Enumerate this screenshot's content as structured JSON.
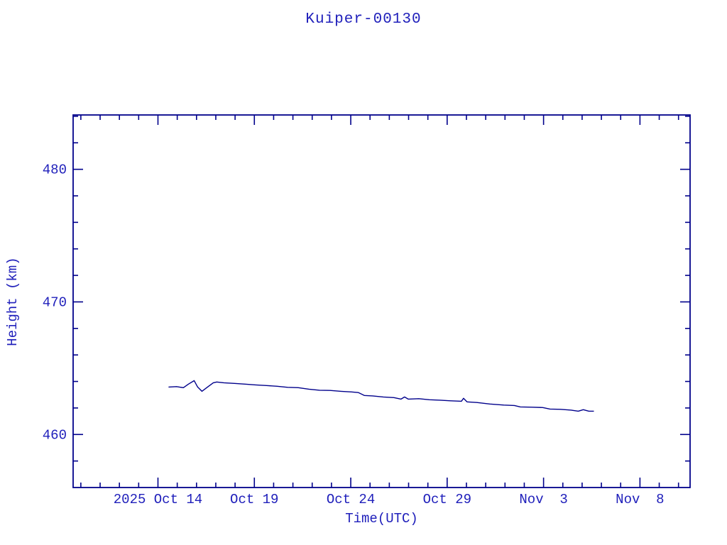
{
  "page": {
    "background_color": "#ffffff",
    "text_color": "#2020bb",
    "axis_color": "#00008b"
  },
  "chart_data": {
    "type": "line",
    "title": "Kuiper-00130",
    "xlabel": "Time(UTC)",
    "ylabel": "Height (km)",
    "grid": false,
    "legend": "none",
    "x_axis": {
      "unit": "days since 2025 Oct 14 00:00 UTC",
      "range": [
        -4.4,
        27.6
      ],
      "major_ticks": [
        0,
        5,
        10,
        15,
        20,
        25
      ],
      "major_labels": [
        "2025 Oct 14",
        "Oct 19",
        "Oct 24",
        "Oct 29",
        "Nov  3",
        "Nov  8"
      ],
      "minor_ticks": [
        -4,
        -3,
        -2,
        -1,
        1,
        2,
        3,
        4,
        6,
        7,
        8,
        9,
        11,
        12,
        13,
        14,
        16,
        17,
        18,
        19,
        21,
        22,
        23,
        24,
        26,
        27
      ]
    },
    "y_axis": {
      "unit": "km",
      "range": [
        456.0,
        484.1
      ],
      "major_ticks": [
        460,
        470,
        480
      ],
      "major_labels": [
        "460",
        "470",
        "480"
      ],
      "minor_ticks": [
        458,
        462,
        464,
        466,
        468,
        472,
        474,
        476,
        478,
        482,
        484
      ]
    },
    "series": [
      {
        "name": "height",
        "color": "#00008b",
        "points": [
          [
            0.55,
            463.58
          ],
          [
            0.96,
            463.61
          ],
          [
            1.32,
            463.53
          ],
          [
            1.58,
            463.8
          ],
          [
            1.88,
            464.06
          ],
          [
            2.06,
            463.58
          ],
          [
            2.28,
            463.26
          ],
          [
            2.57,
            463.58
          ],
          [
            2.87,
            463.9
          ],
          [
            3.05,
            463.96
          ],
          [
            3.42,
            463.9
          ],
          [
            3.97,
            463.85
          ],
          [
            4.52,
            463.8
          ],
          [
            5.07,
            463.74
          ],
          [
            5.63,
            463.69
          ],
          [
            6.18,
            463.64
          ],
          [
            6.73,
            463.56
          ],
          [
            7.28,
            463.53
          ],
          [
            7.83,
            463.42
          ],
          [
            8.38,
            463.34
          ],
          [
            8.93,
            463.32
          ],
          [
            9.49,
            463.26
          ],
          [
            10.04,
            463.21
          ],
          [
            10.4,
            463.16
          ],
          [
            10.7,
            462.94
          ],
          [
            11.14,
            462.91
          ],
          [
            11.69,
            462.83
          ],
          [
            12.24,
            462.78
          ],
          [
            12.61,
            462.67
          ],
          [
            12.79,
            462.83
          ],
          [
            12.98,
            462.67
          ],
          [
            13.53,
            462.7
          ],
          [
            14.08,
            462.62
          ],
          [
            14.63,
            462.59
          ],
          [
            15.18,
            462.54
          ],
          [
            15.74,
            462.51
          ],
          [
            15.85,
            462.73
          ],
          [
            16.03,
            462.46
          ],
          [
            16.54,
            462.41
          ],
          [
            17.21,
            462.3
          ],
          [
            17.94,
            462.22
          ],
          [
            18.49,
            462.19
          ],
          [
            18.79,
            462.08
          ],
          [
            19.41,
            462.06
          ],
          [
            19.96,
            462.03
          ],
          [
            20.33,
            461.92
          ],
          [
            20.88,
            461.9
          ],
          [
            21.43,
            461.84
          ],
          [
            21.8,
            461.76
          ],
          [
            22.06,
            461.87
          ],
          [
            22.35,
            461.76
          ],
          [
            22.61,
            461.76
          ]
        ]
      }
    ]
  }
}
